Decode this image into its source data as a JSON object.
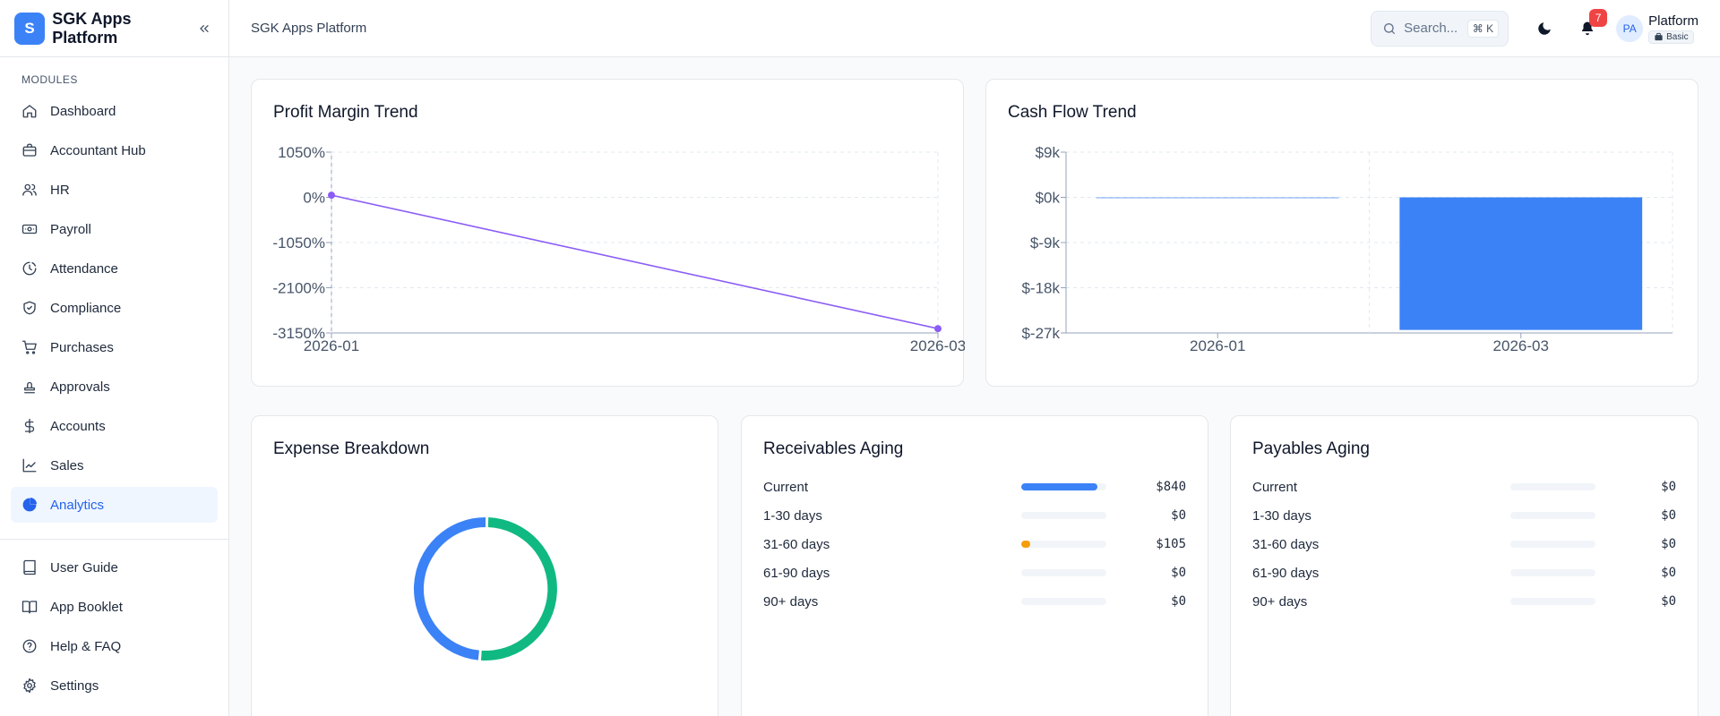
{
  "app": {
    "brand_initial": "S",
    "brand_name": "SGK Apps Platform"
  },
  "sidebar": {
    "section_label": "MODULES",
    "items": [
      {
        "label": "Dashboard",
        "icon": "home-icon"
      },
      {
        "label": "Accountant Hub",
        "icon": "briefcase-icon"
      },
      {
        "label": "HR",
        "icon": "users-icon"
      },
      {
        "label": "Payroll",
        "icon": "banknote-icon"
      },
      {
        "label": "Attendance",
        "icon": "clock-icon"
      },
      {
        "label": "Compliance",
        "icon": "shield-check-icon"
      },
      {
        "label": "Purchases",
        "icon": "cart-icon"
      },
      {
        "label": "Approvals",
        "icon": "stamp-icon"
      },
      {
        "label": "Accounts",
        "icon": "dollar-icon"
      },
      {
        "label": "Sales",
        "icon": "trending-up-icon"
      },
      {
        "label": "Analytics",
        "icon": "pie-chart-icon",
        "active": true
      }
    ],
    "bottom_items": [
      {
        "label": "User Guide",
        "icon": "book-icon"
      },
      {
        "label": "App Booklet",
        "icon": "book-open-icon"
      },
      {
        "label": "Help & FAQ",
        "icon": "help-circle-icon"
      },
      {
        "label": "Settings",
        "icon": "gear-icon"
      }
    ]
  },
  "header": {
    "title": "SGK Apps Platform",
    "search_placeholder": "Search...",
    "search_shortcut": "⌘ K",
    "notification_count": "7",
    "avatar_initials": "PA",
    "user_name": "Platform",
    "plan": "Basic"
  },
  "colors": {
    "accent": "#3b82f6",
    "line": "#8b5cf6",
    "donut_green": "#10b981",
    "donut_blue": "#3b82f6",
    "aging_orange": "#f59e0b"
  },
  "cards": {
    "profit_margin": {
      "title": "Profit Margin Trend"
    },
    "cash_flow": {
      "title": "Cash Flow Trend"
    },
    "expense": {
      "title": "Expense Breakdown"
    },
    "receivables": {
      "title": "Receivables Aging",
      "rows": [
        {
          "label": "Current",
          "value": "$840",
          "fraction": 0.89,
          "color": "#3b82f6"
        },
        {
          "label": "1-30 days",
          "value": "$0",
          "fraction": 0,
          "color": "#3b82f6"
        },
        {
          "label": "31-60 days",
          "value": "$105",
          "fraction": 0.11,
          "color": "#f59e0b"
        },
        {
          "label": "61-90 days",
          "value": "$0",
          "fraction": 0,
          "color": "#3b82f6"
        },
        {
          "label": "90+ days",
          "value": "$0",
          "fraction": 0,
          "color": "#3b82f6"
        }
      ]
    },
    "payables": {
      "title": "Payables Aging",
      "rows": [
        {
          "label": "Current",
          "value": "$0",
          "fraction": 0,
          "color": "#3b82f6"
        },
        {
          "label": "1-30 days",
          "value": "$0",
          "fraction": 0,
          "color": "#3b82f6"
        },
        {
          "label": "31-60 days",
          "value": "$0",
          "fraction": 0,
          "color": "#3b82f6"
        },
        {
          "label": "61-90 days",
          "value": "$0",
          "fraction": 0,
          "color": "#3b82f6"
        },
        {
          "label": "90+ days",
          "value": "$0",
          "fraction": 0,
          "color": "#3b82f6"
        }
      ]
    }
  },
  "chart_data": [
    {
      "type": "line",
      "title": "Profit Margin Trend",
      "x": [
        "2026-01",
        "2026-03"
      ],
      "series": [
        {
          "values": [
            50,
            -3050
          ]
        }
      ],
      "yticks": [
        "1050%",
        "0%",
        "-1050%",
        "-2100%",
        "-3150%"
      ],
      "ylim": [
        -3150,
        1050
      ],
      "grid": true,
      "color": "#8b5cf6"
    },
    {
      "type": "bar",
      "title": "Cash Flow Trend",
      "categories": [
        "2026-01",
        "2026-03"
      ],
      "values": [
        0,
        -26400
      ],
      "yticks": [
        "$9k",
        "$0k",
        "$-9k",
        "$-18k",
        "$-27k"
      ],
      "ylim": [
        -27000,
        9000
      ],
      "grid": true,
      "color": "#3b82f6"
    },
    {
      "type": "pie",
      "title": "Expense Breakdown",
      "slices": [
        {
          "value": 51,
          "color": "#10b981"
        },
        {
          "value": 49,
          "color": "#3b82f6"
        }
      ]
    }
  ]
}
